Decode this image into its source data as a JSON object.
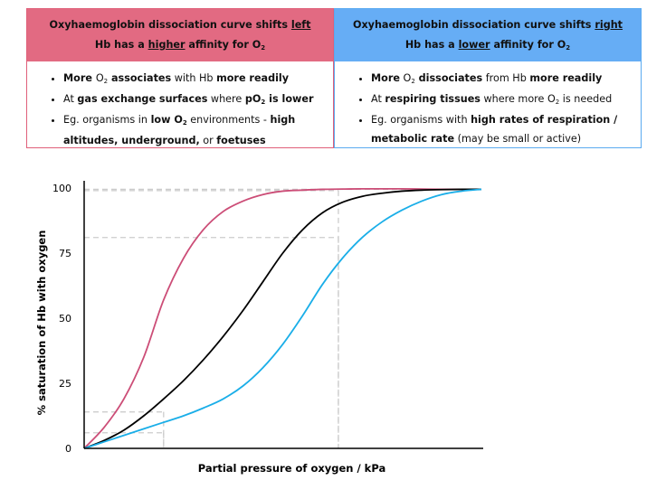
{
  "left_panel": {
    "title_line1": "Oxyhaemoglobin dissociation curve shifts ",
    "title_line1_em": "left",
    "title_line2a": "Hb has a ",
    "title_line2_em": "higher",
    "title_line2b": " affinity for O",
    "title_sub": "2",
    "bullets": [
      {
        "a": "More ",
        "b": "O",
        "sub": "2",
        "c": " associates",
        "d": " with Hb ",
        "e": "more readily",
        "f": ""
      },
      {
        "a": "At ",
        "b": "gas exchange surfaces",
        "c": " where ",
        "d": "pO",
        "sub": "2",
        "e": " is lower"
      },
      {
        "a": "Eg. organisms in ",
        "b": "low O",
        "sub": "2",
        "c": " environments",
        "d": " - ",
        "e": "high altitudes, underground,",
        "f": " or ",
        "g": "foetuses"
      }
    ]
  },
  "right_panel": {
    "title_line1": "Oxyhaemoglobin dissociation curve shifts ",
    "title_line1_em": "right",
    "title_line2a": "Hb has a ",
    "title_line2_em": "lower",
    "title_line2b": " affinity for O",
    "title_sub": "2",
    "bullets": [
      {
        "a": "More",
        "b": " O",
        "sub": "2",
        "c": " dissociates",
        "d": " from Hb ",
        "e": "more readily"
      },
      {
        "a": "At ",
        "b": "respiring tissues",
        "c": " where more O",
        "sub": "2",
        "d": " is needed"
      },
      {
        "a": "Eg. organisms with ",
        "b": "high rates of respiration / metabolic rate",
        "c": " (may be small or active)"
      }
    ]
  },
  "chart_data": {
    "type": "line",
    "title": "",
    "xlabel": "Partial pressure of oxygen / kPa",
    "ylabel": "% saturation of Hb with oxygen",
    "ylim": [
      0,
      100
    ],
    "xlim": [
      0,
      100
    ],
    "yticks": [
      "0",
      "25",
      "50",
      "75",
      "100"
    ],
    "ytick_values": [
      0,
      25,
      50,
      75,
      100
    ],
    "grid": false,
    "colors": {
      "left": "#cc4d77",
      "normal": "#000000",
      "right": "#1aaee8",
      "guide": "#cccccc"
    },
    "series": [
      {
        "key": "left",
        "color": "#cc4d77",
        "x": [
          0,
          5,
          10,
          15,
          20,
          25,
          30,
          35,
          40,
          45,
          50,
          55,
          60,
          65,
          70,
          75,
          80,
          85,
          90,
          95,
          100
        ],
        "y": [
          0,
          8,
          19,
          35,
          57,
          73,
          84,
          91,
          95,
          97.5,
          98.8,
          99.2,
          99.5,
          99.6,
          99.7,
          99.7,
          99.7,
          99.6,
          99.5,
          99.5,
          99.5
        ]
      },
      {
        "key": "normal",
        "color": "#000000",
        "x": [
          0,
          5,
          10,
          15,
          20,
          25,
          30,
          35,
          40,
          45,
          50,
          55,
          60,
          65,
          70,
          75,
          80,
          85,
          90,
          95,
          100
        ],
        "y": [
          0,
          3,
          7,
          12.5,
          19,
          26,
          34,
          43,
          53,
          64,
          75,
          84,
          90.5,
          94.5,
          96.8,
          98,
          98.8,
          99.2,
          99.4,
          99.5,
          99.5
        ]
      },
      {
        "key": "right",
        "color": "#1aaee8",
        "x": [
          0,
          5,
          10,
          15,
          20,
          25,
          30,
          35,
          40,
          45,
          50,
          55,
          60,
          65,
          70,
          75,
          80,
          85,
          90,
          95,
          100
        ],
        "y": [
          0,
          2.5,
          5,
          7.5,
          10,
          12.5,
          15.5,
          19,
          24,
          31,
          40,
          51,
          63,
          73,
          81,
          87,
          91.5,
          95,
          97.5,
          98.8,
          99.5
        ]
      }
    ],
    "guides": [
      {
        "x": 20,
        "y": 14
      },
      {
        "x": 20,
        "y": 6
      },
      {
        "x": 64,
        "y": 81
      },
      {
        "x": 64,
        "y": 99
      }
    ]
  }
}
